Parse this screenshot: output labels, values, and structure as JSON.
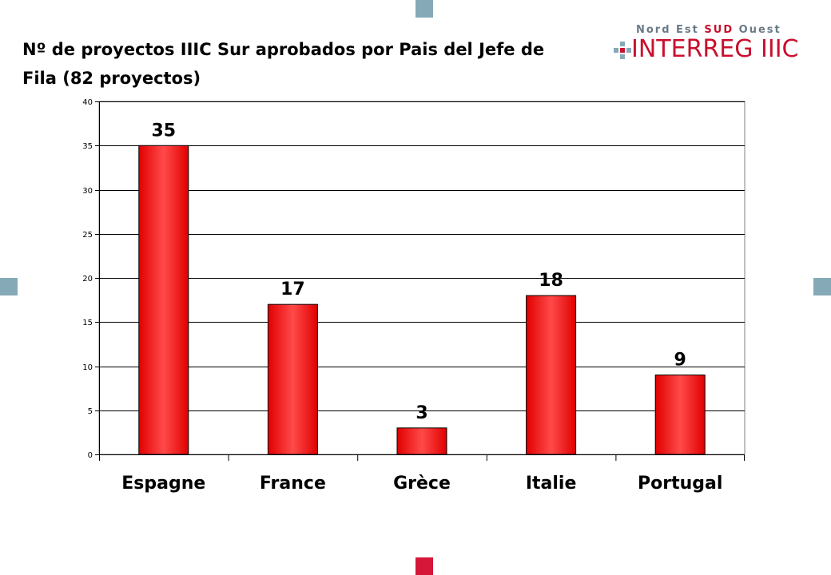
{
  "title": "Nº de proyectos IIIC Sur aprobados por Pais del Jefe de Fila (82 proyectos)",
  "logo": {
    "top_left": "Nord Est ",
    "top_accent": "SUD",
    "top_right": " Ouest",
    "main": "INTERREG IIIC"
  },
  "colors": {
    "bar": "#ff2020",
    "bar_dark": "#c00000",
    "accent_square_blue": "#86a9b8",
    "accent_square_red": "#d6173a",
    "logo_red": "#c8102e"
  },
  "chart_data": {
    "type": "bar",
    "categories": [
      "Espagne",
      "France",
      "Grèce",
      "Italie",
      "Portugal"
    ],
    "values": [
      35,
      17,
      3,
      18,
      9
    ],
    "data_labels": [
      "35",
      "17",
      "3",
      "18",
      "9"
    ],
    "y_ticks": [
      "0",
      "5",
      "10",
      "15",
      "20",
      "25",
      "30",
      "35",
      "40"
    ],
    "ylim": [
      0,
      40
    ],
    "grid": true,
    "legend": "none",
    "title": "",
    "xlabel": "",
    "ylabel": ""
  }
}
